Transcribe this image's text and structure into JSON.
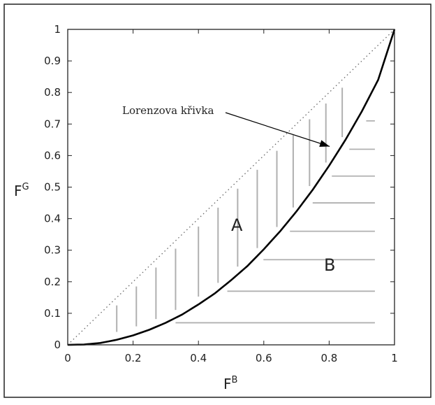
{
  "chart_data": {
    "type": "line",
    "xlabel": "F",
    "xlabel_sup": "B",
    "ylabel": "F",
    "ylabel_sup": "G",
    "xlim": [
      0,
      1
    ],
    "ylim": [
      0,
      1
    ],
    "x_ticks": [
      "0",
      "0.2",
      "0.4",
      "0.6",
      "0.8",
      "1"
    ],
    "y_ticks": [
      "0",
      "0.1",
      "0.2",
      "0.3",
      "0.4",
      "0.5",
      "0.6",
      "0.7",
      "0.8",
      "0.9",
      "1"
    ],
    "grid": false,
    "series": [
      {
        "name": "Lorenzova křivka",
        "style": "solid",
        "x": [
          0,
          0.05,
          0.1,
          0.15,
          0.2,
          0.25,
          0.3,
          0.35,
          0.4,
          0.45,
          0.5,
          0.55,
          0.6,
          0.65,
          0.7,
          0.75,
          0.8,
          0.85,
          0.9,
          0.95,
          1
        ],
        "y": [
          0,
          0.001,
          0.006,
          0.016,
          0.03,
          0.048,
          0.07,
          0.096,
          0.128,
          0.163,
          0.205,
          0.25,
          0.303,
          0.36,
          0.423,
          0.492,
          0.568,
          0.65,
          0.74,
          0.84,
          1
        ]
      },
      {
        "style": "dotted",
        "x": [
          0,
          1
        ],
        "y": [
          0,
          1
        ]
      }
    ],
    "annotations": {
      "curve_label": "Lorenzova křivka",
      "arrow_tip": [
        0.81,
        0.62
      ],
      "region_a": "A",
      "region_b": "B"
    },
    "colors": {
      "curve": "#000000",
      "hatch": "#b0b0b0",
      "diagonal": "#666666"
    }
  }
}
